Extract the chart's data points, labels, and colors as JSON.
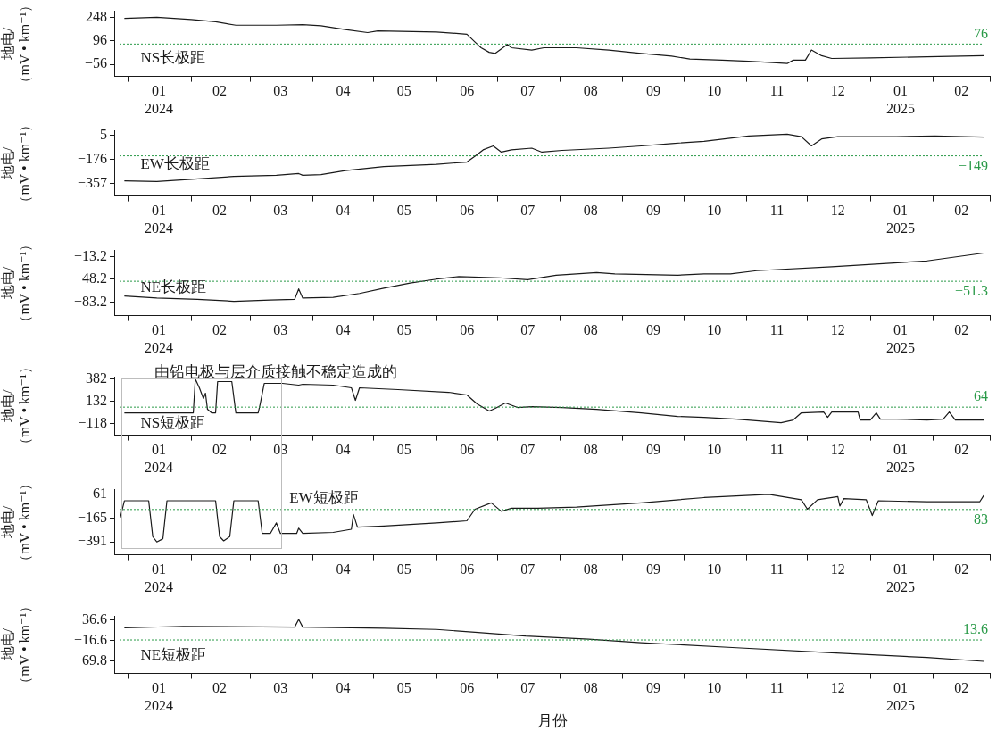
{
  "chart_data": [
    {
      "type": "line",
      "ylabel": "地电/\n（mV • km⁻¹）",
      "xlim": [
        "2023-12-25",
        "2025-03-01"
      ],
      "xticks": [
        {
          "value": "2024-01-01",
          "label": null
        },
        {
          "value": "2024-01-16",
          "label": "01\n2024"
        },
        {
          "value": "2024-02-01",
          "label": null
        },
        {
          "value": "2024-02-15",
          "label": "02"
        },
        {
          "value": "2024-03-01",
          "label": null
        },
        {
          "value": "2024-03-16",
          "label": "03"
        },
        {
          "value": "2024-04-01",
          "label": null
        },
        {
          "value": "2024-04-16",
          "label": "04"
        },
        {
          "value": "2024-05-01",
          "label": null
        },
        {
          "value": "2024-05-16",
          "label": "05"
        },
        {
          "value": "2024-06-01",
          "label": null
        },
        {
          "value": "2024-06-16",
          "label": "06"
        },
        {
          "value": "2024-07-01",
          "label": null
        },
        {
          "value": "2024-07-16",
          "label": "07"
        },
        {
          "value": "2024-08-01",
          "label": null
        },
        {
          "value": "2024-08-16",
          "label": "08"
        },
        {
          "value": "2024-09-01",
          "label": null
        },
        {
          "value": "2024-09-16",
          "label": "09"
        },
        {
          "value": "2024-10-01",
          "label": null
        },
        {
          "value": "2024-10-16",
          "label": "10"
        },
        {
          "value": "2024-11-01",
          "label": null
        },
        {
          "value": "2024-11-16",
          "label": "11"
        },
        {
          "value": "2024-12-01",
          "label": null
        },
        {
          "value": "2024-12-16",
          "label": "12"
        },
        {
          "value": "2025-01-01",
          "label": null
        },
        {
          "value": "2025-01-16",
          "label": "01\n2025"
        },
        {
          "value": "2025-02-01",
          "label": null
        },
        {
          "value": "2025-02-15",
          "label": "02"
        },
        {
          "value": "2025-03-01",
          "label": null
        }
      ],
      "ylim": [
        -135,
        290
      ],
      "yticks": [
        248,
        96,
        {
          "value": -56,
          "label": "−56"
        }
      ],
      "ref_lines": [
        {
          "axis": "y",
          "value": 76,
          "label": "76",
          "color": "#2a9a48",
          "line_style": "dotted"
        }
      ],
      "series": [
        {
          "name": "NS长极距",
          "color": "#1a1a1a",
          "x": [
            "2023-12-30",
            "2024-01-15",
            "2024-02-01",
            "2024-02-13",
            "2024-02-23",
            "2024-03-14",
            "2024-03-27",
            "2024-04-05",
            "2024-04-17",
            "2024-04-28",
            "2024-05-03",
            "2024-06-01",
            "2024-06-16",
            "2024-06-20",
            "2024-06-23",
            "2024-06-27",
            "2024-06-30",
            "2024-07-03",
            "2024-07-06",
            "2024-07-08",
            "2024-07-18",
            "2024-07-24",
            "2024-08-09",
            "2024-08-25",
            "2024-09-10",
            "2024-09-25",
            "2024-10-04",
            "2024-10-20",
            "2024-11-02",
            "2024-11-12",
            "2024-11-21",
            "2024-11-24",
            "2024-11-30",
            "2024-12-03",
            "2024-12-08",
            "2024-12-13",
            "2025-01-01",
            "2025-01-29",
            "2025-02-26"
          ],
          "values": [
            243,
            250,
            236,
            221,
            199,
            199,
            203,
            195,
            170,
            151,
            162,
            155,
            140,
            89,
            52,
            22,
            15,
            44,
            74,
            52,
            37,
            52,
            52,
            37,
            15,
            -3,
            -22,
            -29,
            -36,
            -44,
            -51,
            -29,
            -29,
            37,
            0,
            -18,
            -14,
            -7,
            0
          ]
        }
      ]
    },
    {
      "type": "line",
      "ylabel": "地电/\n（mV • km⁻¹）",
      "xlim": [
        "2023-12-25",
        "2025-03-01"
      ],
      "xticks": [
        {
          "value": "2024-01-01",
          "label": null
        },
        {
          "value": "2024-01-16",
          "label": "01\n2024"
        },
        {
          "value": "2024-02-01",
          "label": null
        },
        {
          "value": "2024-02-15",
          "label": "02"
        },
        {
          "value": "2024-03-01",
          "label": null
        },
        {
          "value": "2024-03-16",
          "label": "03"
        },
        {
          "value": "2024-04-01",
          "label": null
        },
        {
          "value": "2024-04-16",
          "label": "04"
        },
        {
          "value": "2024-05-01",
          "label": null
        },
        {
          "value": "2024-05-16",
          "label": "05"
        },
        {
          "value": "2024-06-01",
          "label": null
        },
        {
          "value": "2024-06-16",
          "label": "06"
        },
        {
          "value": "2024-07-01",
          "label": null
        },
        {
          "value": "2024-07-16",
          "label": "07"
        },
        {
          "value": "2024-08-01",
          "label": null
        },
        {
          "value": "2024-08-16",
          "label": "08"
        },
        {
          "value": "2024-09-01",
          "label": null
        },
        {
          "value": "2024-09-16",
          "label": "09"
        },
        {
          "value": "2024-10-01",
          "label": null
        },
        {
          "value": "2024-10-16",
          "label": "10"
        },
        {
          "value": "2024-11-01",
          "label": null
        },
        {
          "value": "2024-11-16",
          "label": "11"
        },
        {
          "value": "2024-12-01",
          "label": null
        },
        {
          "value": "2024-12-16",
          "label": "12"
        },
        {
          "value": "2025-01-01",
          "label": null
        },
        {
          "value": "2025-01-16",
          "label": "01\n2025"
        },
        {
          "value": "2025-02-01",
          "label": null
        },
        {
          "value": "2025-02-15",
          "label": "02"
        },
        {
          "value": "2025-03-01",
          "label": null
        }
      ],
      "ylim": [
        -453,
        40
      ],
      "yticks": [
        5,
        {
          "value": -176,
          "label": "−176"
        },
        {
          "value": -357,
          "label": "−357"
        }
      ],
      "ref_lines": [
        {
          "axis": "y",
          "value": -149,
          "label": "−149",
          "color": "#2a9a48",
          "line_style": "dotted"
        }
      ],
      "series": [
        {
          "name": "EW长极距",
          "color": "#1a1a1a",
          "x": [
            "2023-12-30",
            "2024-01-15",
            "2024-02-01",
            "2024-02-22",
            "2024-03-14",
            "2024-03-25",
            "2024-03-27",
            "2024-04-05",
            "2024-04-17",
            "2024-05-06",
            "2024-06-01",
            "2024-06-16",
            "2024-06-20",
            "2024-06-24",
            "2024-06-29",
            "2024-07-03",
            "2024-07-08",
            "2024-07-18",
            "2024-07-23",
            "2024-08-02",
            "2024-08-25",
            "2024-09-10",
            "2024-09-25",
            "2024-10-11",
            "2024-11-02",
            "2024-11-21",
            "2024-11-28",
            "2024-12-03",
            "2024-12-08",
            "2024-12-16",
            "2025-01-14",
            "2025-02-02",
            "2025-02-26"
          ],
          "values": [
            -339,
            -344,
            -326,
            -305,
            -296,
            -283,
            -296,
            -291,
            -261,
            -230,
            -213,
            -196,
            -152,
            -104,
            -74,
            -121,
            -104,
            -91,
            -121,
            -108,
            -91,
            -74,
            -56,
            -39,
            1,
            14,
            -4,
            -74,
            -21,
            -4,
            -4,
            1,
            -8
          ]
        }
      ]
    },
    {
      "type": "line",
      "ylabel": "地电/\n（mV • km⁻¹）",
      "xlim": [
        "2023-12-25",
        "2025-03-01"
      ],
      "xticks": [
        {
          "value": "2024-01-01",
          "label": null
        },
        {
          "value": "2024-01-16",
          "label": "01\n2024"
        },
        {
          "value": "2024-02-01",
          "label": null
        },
        {
          "value": "2024-02-15",
          "label": "02"
        },
        {
          "value": "2024-03-01",
          "label": null
        },
        {
          "value": "2024-03-16",
          "label": "03"
        },
        {
          "value": "2024-04-01",
          "label": null
        },
        {
          "value": "2024-04-16",
          "label": "04"
        },
        {
          "value": "2024-05-01",
          "label": null
        },
        {
          "value": "2024-05-16",
          "label": "05"
        },
        {
          "value": "2024-06-01",
          "label": null
        },
        {
          "value": "2024-06-16",
          "label": "06"
        },
        {
          "value": "2024-07-01",
          "label": null
        },
        {
          "value": "2024-07-16",
          "label": "07"
        },
        {
          "value": "2024-08-01",
          "label": null
        },
        {
          "value": "2024-08-16",
          "label": "08"
        },
        {
          "value": "2024-09-01",
          "label": null
        },
        {
          "value": "2024-09-16",
          "label": "09"
        },
        {
          "value": "2024-10-01",
          "label": null
        },
        {
          "value": "2024-10-16",
          "label": "10"
        },
        {
          "value": "2024-11-01",
          "label": null
        },
        {
          "value": "2024-11-16",
          "label": "11"
        },
        {
          "value": "2024-12-01",
          "label": null
        },
        {
          "value": "2024-12-16",
          "label": "12"
        },
        {
          "value": "2025-01-01",
          "label": null
        },
        {
          "value": "2025-01-16",
          "label": "01\n2025"
        },
        {
          "value": "2025-02-01",
          "label": null
        },
        {
          "value": "2025-02-15",
          "label": "02"
        },
        {
          "value": "2025-03-01",
          "label": null
        }
      ],
      "ylim": [
        -104,
        -4
      ],
      "yticks": [
        {
          "value": -13.2,
          "label": "−13.2"
        },
        {
          "value": -48.2,
          "label": "−48.2"
        },
        {
          "value": -83.2,
          "label": "−83.2"
        }
      ],
      "ref_lines": [
        {
          "axis": "y",
          "value": -51.3,
          "label": "−51.3",
          "color": "#2a9a48",
          "line_style": "dotted"
        }
      ],
      "series": [
        {
          "name": "NE长极距",
          "color": "#1a1a1a",
          "x": [
            "2023-12-30",
            "2024-01-15",
            "2024-02-04",
            "2024-02-22",
            "2024-03-11",
            "2024-03-23",
            "2024-03-25",
            "2024-03-27",
            "2024-04-11",
            "2024-04-24",
            "2024-05-06",
            "2024-05-19",
            "2024-06-01",
            "2024-06-12",
            "2024-07-02",
            "2024-07-16",
            "2024-07-30",
            "2024-08-19",
            "2024-08-28",
            "2024-09-28",
            "2024-10-11",
            "2024-10-24",
            "2024-11-06",
            "2024-12-13",
            "2025-01-29",
            "2025-02-26"
          ],
          "values": [
            -74,
            -77,
            -79,
            -82,
            -80,
            -79,
            -63,
            -77,
            -76,
            -70,
            -62,
            -54,
            -48,
            -44,
            -46,
            -49,
            -42,
            -38,
            -40,
            -42,
            -40,
            -40,
            -35,
            -29,
            -20,
            -8
          ]
        }
      ]
    },
    {
      "type": "line",
      "ylabel": "地电/\n（mV • km⁻¹）",
      "annotations": [
        "由铅电极与层介质接触不稳定造成的"
      ],
      "xlim": [
        "2023-12-25",
        "2025-03-01"
      ],
      "xticks": [
        {
          "value": "2024-01-01",
          "label": null
        },
        {
          "value": "2024-01-16",
          "label": "01\n2024"
        },
        {
          "value": "2024-02-01",
          "label": null
        },
        {
          "value": "2024-02-15",
          "label": "02"
        },
        {
          "value": "2024-03-01",
          "label": null
        },
        {
          "value": "2024-03-16",
          "label": "03"
        },
        {
          "value": "2024-04-01",
          "label": null
        },
        {
          "value": "2024-04-16",
          "label": "04"
        },
        {
          "value": "2024-05-01",
          "label": null
        },
        {
          "value": "2024-05-16",
          "label": "05"
        },
        {
          "value": "2024-06-01",
          "label": null
        },
        {
          "value": "2024-06-16",
          "label": "06"
        },
        {
          "value": "2024-07-01",
          "label": null
        },
        {
          "value": "2024-07-16",
          "label": "07"
        },
        {
          "value": "2024-08-01",
          "label": null
        },
        {
          "value": "2024-08-16",
          "label": "08"
        },
        {
          "value": "2024-09-01",
          "label": null
        },
        {
          "value": "2024-09-16",
          "label": "09"
        },
        {
          "value": "2024-10-01",
          "label": null
        },
        {
          "value": "2024-10-16",
          "label": "10"
        },
        {
          "value": "2024-11-01",
          "label": null
        },
        {
          "value": "2024-11-16",
          "label": "11"
        },
        {
          "value": "2024-12-01",
          "label": null
        },
        {
          "value": "2024-12-16",
          "label": "12"
        },
        {
          "value": "2025-01-01",
          "label": null
        },
        {
          "value": "2025-01-16",
          "label": "01\n2025"
        },
        {
          "value": "2025-02-01",
          "label": null
        },
        {
          "value": "2025-02-15",
          "label": "02"
        },
        {
          "value": "2025-03-01",
          "label": null
        }
      ],
      "ylim": [
        -250,
        405
      ],
      "yticks": [
        382,
        132,
        {
          "value": -118,
          "label": "−118"
        }
      ],
      "ref_lines": [
        {
          "axis": "y",
          "value": 64,
          "label": "64",
          "color": "#2a9a48",
          "line_style": "dotted"
        }
      ],
      "series": [
        {
          "name": "NS短极距",
          "color": "#1a1a1a",
          "x": [
            "2023-12-30",
            "2024-02-02",
            "2024-02-03",
            "2024-02-05",
            "2024-02-07",
            "2024-02-08",
            "2024-02-09",
            "2024-02-11",
            "2024-02-13",
            "2024-02-14",
            "2024-02-21",
            "2024-02-23",
            "2024-03-05",
            "2024-03-06",
            "2024-03-08",
            "2024-03-17",
            "2024-03-25",
            "2024-03-27",
            "2024-04-11",
            "2024-04-20",
            "2024-04-22",
            "2024-04-24",
            "2024-05-13",
            "2024-06-07",
            "2024-06-16",
            "2024-06-21",
            "2024-06-27",
            "2024-06-30",
            "2024-07-05",
            "2024-07-11",
            "2024-07-18",
            "2024-08-02",
            "2024-08-19",
            "2024-09-10",
            "2024-09-28",
            "2024-10-11",
            "2024-10-27",
            "2024-11-18",
            "2024-11-24",
            "2024-11-28",
            "2024-12-09",
            "2024-12-11",
            "2024-12-13",
            "2024-12-26",
            "2024-12-27",
            "2025-01-01",
            "2025-01-04",
            "2025-01-06",
            "2025-01-14",
            "2025-01-29",
            "2025-02-06",
            "2025-02-09",
            "2025-02-12",
            "2025-02-26"
          ],
          "values": [
            0,
            0,
            380,
            280,
            160,
            220,
            40,
            0,
            0,
            350,
            350,
            0,
            0,
            100,
            330,
            330,
            310,
            320,
            310,
            280,
            140,
            280,
            260,
            230,
            200,
            100,
            20,
            50,
            110,
            60,
            70,
            60,
            40,
            0,
            -40,
            -50,
            -70,
            -110,
            -80,
            0,
            10,
            -50,
            10,
            10,
            -80,
            -80,
            0,
            -70,
            -70,
            -80,
            -70,
            10,
            -80,
            -80
          ]
        }
      ]
    },
    {
      "type": "line",
      "ylabel": "地电/\n（mV • km⁻¹）",
      "xlim": [
        "2023-12-25",
        "2025-03-01"
      ],
      "xticks": [
        {
          "value": "2024-01-01",
          "label": null
        },
        {
          "value": "2024-01-16",
          "label": "01\n2024"
        },
        {
          "value": "2024-02-01",
          "label": null
        },
        {
          "value": "2024-02-15",
          "label": "02"
        },
        {
          "value": "2024-03-01",
          "label": null
        },
        {
          "value": "2024-03-16",
          "label": "03"
        },
        {
          "value": "2024-04-01",
          "label": null
        },
        {
          "value": "2024-04-16",
          "label": "04"
        },
        {
          "value": "2024-05-01",
          "label": null
        },
        {
          "value": "2024-05-16",
          "label": "05"
        },
        {
          "value": "2024-06-01",
          "label": null
        },
        {
          "value": "2024-06-16",
          "label": "06"
        },
        {
          "value": "2024-07-01",
          "label": null
        },
        {
          "value": "2024-07-16",
          "label": "07"
        },
        {
          "value": "2024-08-01",
          "label": null
        },
        {
          "value": "2024-08-16",
          "label": "08"
        },
        {
          "value": "2024-09-01",
          "label": null
        },
        {
          "value": "2024-09-16",
          "label": "09"
        },
        {
          "value": "2024-10-01",
          "label": null
        },
        {
          "value": "2024-10-16",
          "label": "10"
        },
        {
          "value": "2024-11-01",
          "label": null
        },
        {
          "value": "2024-11-16",
          "label": "11"
        },
        {
          "value": "2024-12-01",
          "label": null
        },
        {
          "value": "2024-12-16",
          "label": "12"
        },
        {
          "value": "2025-01-01",
          "label": null
        },
        {
          "value": "2025-01-16",
          "label": "01\n2025"
        },
        {
          "value": "2025-02-01",
          "label": null
        },
        {
          "value": "2025-02-15",
          "label": "02"
        },
        {
          "value": "2025-03-01",
          "label": null
        }
      ],
      "ylim": [
        -512,
        105
      ],
      "yticks": [
        61,
        {
          "value": -165,
          "label": "−165"
        },
        {
          "value": -391,
          "label": "−391"
        }
      ],
      "ref_lines": [
        {
          "axis": "y",
          "value": -83,
          "label": "−83",
          "color": "#2a9a48",
          "line_style": "dotted"
        }
      ],
      "series": [
        {
          "name": "EW短极距",
          "color": "#1a1a1a",
          "x": [
            "2023-12-28",
            "2023-12-30",
            "2024-01-11",
            "2024-01-13",
            "2024-01-15",
            "2024-01-18",
            "2024-01-20",
            "2024-02-13",
            "2024-02-15",
            "2024-02-17",
            "2024-02-20",
            "2024-02-22",
            "2024-03-05",
            "2024-03-07",
            "2024-03-11",
            "2024-03-14",
            "2024-03-16",
            "2024-03-24",
            "2024-03-25",
            "2024-03-27",
            "2024-04-11",
            "2024-04-20",
            "2024-04-21",
            "2024-04-23",
            "2024-05-06",
            "2024-06-01",
            "2024-06-16",
            "2024-06-20",
            "2024-06-28",
            "2024-07-03",
            "2024-07-08",
            "2024-07-21",
            "2024-08-09",
            "2024-09-10",
            "2024-10-11",
            "2024-11-12",
            "2024-11-28",
            "2024-12-01",
            "2024-12-06",
            "2024-12-16",
            "2024-12-17",
            "2024-12-19",
            "2024-12-30",
            "2025-01-02",
            "2025-01-05",
            "2025-01-29",
            "2025-02-24",
            "2025-02-26"
          ],
          "values": [
            -160,
            0,
            0,
            -340,
            -390,
            -360,
            0,
            0,
            -340,
            -380,
            -340,
            0,
            0,
            -310,
            -310,
            -210,
            -310,
            -310,
            -260,
            -310,
            -300,
            -270,
            -130,
            -250,
            -240,
            -210,
            -190,
            -80,
            -20,
            -100,
            -70,
            -70,
            -60,
            -20,
            30,
            60,
            10,
            -80,
            10,
            40,
            -50,
            20,
            10,
            -140,
            0,
            -10,
            -10,
            50
          ]
        }
      ]
    },
    {
      "type": "line",
      "ylabel": "地电/\n（mV • km⁻¹）",
      "xlabel": "月份",
      "annotations": [
        {
          "text": "13.6",
          "x": "2025-02-26",
          "y": -15
        }
      ],
      "xlim": [
        "2023-12-25",
        "2025-03-01"
      ],
      "xticks": [
        {
          "value": "2024-01-01",
          "label": null
        },
        {
          "value": "2024-01-16",
          "label": "01\n2024"
        },
        {
          "value": "2024-02-01",
          "label": null
        },
        {
          "value": "2024-02-15",
          "label": "02"
        },
        {
          "value": "2024-03-01",
          "label": null
        },
        {
          "value": "2024-03-16",
          "label": "03"
        },
        {
          "value": "2024-04-01",
          "label": null
        },
        {
          "value": "2024-04-16",
          "label": "04"
        },
        {
          "value": "2024-05-01",
          "label": null
        },
        {
          "value": "2024-05-16",
          "label": "05"
        },
        {
          "value": "2024-06-01",
          "label": null
        },
        {
          "value": "2024-06-16",
          "label": "06"
        },
        {
          "value": "2024-07-01",
          "label": null
        },
        {
          "value": "2024-07-16",
          "label": "07"
        },
        {
          "value": "2024-08-01",
          "label": null
        },
        {
          "value": "2024-08-16",
          "label": "08"
        },
        {
          "value": "2024-09-01",
          "label": null
        },
        {
          "value": "2024-09-16",
          "label": "09"
        },
        {
          "value": "2024-10-01",
          "label": null
        },
        {
          "value": "2024-10-16",
          "label": "10"
        },
        {
          "value": "2024-11-01",
          "label": null
        },
        {
          "value": "2024-11-16",
          "label": "11"
        },
        {
          "value": "2024-12-01",
          "label": null
        },
        {
          "value": "2024-12-16",
          "label": "12"
        },
        {
          "value": "2025-01-01",
          "label": null
        },
        {
          "value": "2025-01-16",
          "label": "01\n2025"
        },
        {
          "value": "2025-02-01",
          "label": null
        },
        {
          "value": "2025-02-15",
          "label": "02"
        },
        {
          "value": "2025-03-01",
          "label": null
        }
      ],
      "ylim": [
        -101,
        47
      ],
      "yticks": [
        36.6,
        {
          "value": -16.6,
          "label": "−16.6"
        },
        {
          "value": -69.8,
          "label": "−69.8"
        }
      ],
      "ref_lines": [
        {
          "axis": "y",
          "value": -15,
          "color": "#2a9a48",
          "line_style": "dotted"
        }
      ],
      "series": [
        {
          "name": "NE短极距",
          "color": "#1a1a1a",
          "x": [
            "2023-12-30",
            "2024-01-28",
            "2024-03-23",
            "2024-03-25",
            "2024-03-27",
            "2024-05-06",
            "2024-06-01",
            "2024-06-20",
            "2024-07-15",
            "2024-08-15",
            "2024-09-10",
            "2024-10-27",
            "2024-12-13",
            "2025-01-29",
            "2025-02-26"
          ],
          "values": [
            16,
            20,
            18,
            38,
            18,
            15,
            12,
            5,
            -5,
            -13,
            -22,
            -35,
            -48,
            -60,
            -70
          ]
        }
      ]
    }
  ]
}
